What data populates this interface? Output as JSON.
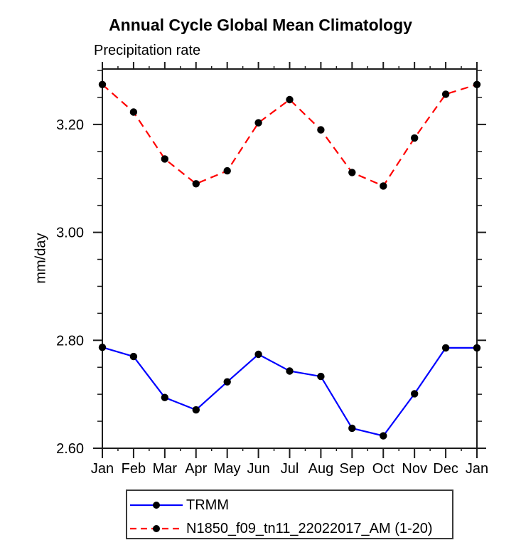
{
  "chart_data": {
    "type": "line",
    "title": "Annual Cycle Global Mean Climatology",
    "subtitle": "Precipitation rate",
    "ylabel": "mm/day",
    "xlabel": "",
    "categories": [
      "Jan",
      "Feb",
      "Mar",
      "Apr",
      "May",
      "Jun",
      "Jul",
      "Aug",
      "Sep",
      "Oct",
      "Nov",
      "Dec",
      "Jan"
    ],
    "ylim": [
      2.6,
      3.3027
    ],
    "yticks": {
      "major": [
        2.6,
        2.8,
        3.0,
        3.2
      ],
      "labels": [
        "2.60",
        "2.80",
        "3.00",
        "3.20"
      ],
      "minor_step": 0.05
    },
    "grid": false,
    "legend_position": "bottom",
    "axis_color": "#1c1c1c",
    "marker_color": "#000000",
    "series": [
      {
        "name": "TRMM",
        "color": "#0000ff",
        "line_style": "solid",
        "marker": "circle",
        "values": [
          2.787,
          2.77,
          2.694,
          2.671,
          2.723,
          2.774,
          2.743,
          2.733,
          2.637,
          2.623,
          2.701,
          2.786,
          2.786
        ]
      },
      {
        "name": "N1850_f09_tn11_22022017_AM (1-20)",
        "color": "#ff0000",
        "line_style": "dashed",
        "marker": "circle",
        "values": [
          3.274,
          3.223,
          3.136,
          3.09,
          3.114,
          3.203,
          3.246,
          3.19,
          3.111,
          3.086,
          3.175,
          3.256,
          3.274
        ]
      }
    ]
  }
}
